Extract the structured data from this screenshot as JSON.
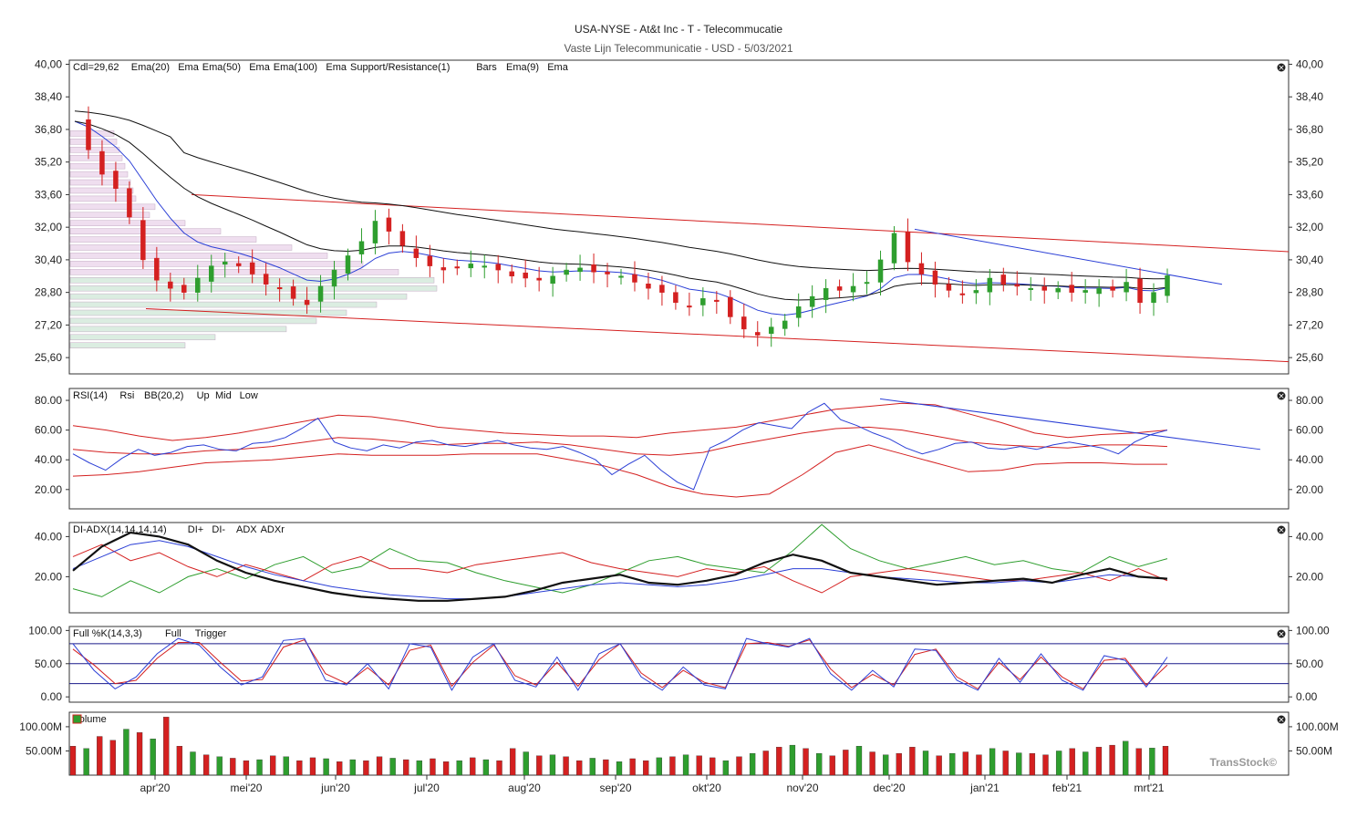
{
  "header": {
    "title": "USA-NYSE - At&t Inc - T - Telecommucatie",
    "subtitle": "Vaste Lijn Telecommunicatie - USD - 5/03/2021"
  },
  "watermark": "TransStock©",
  "colors": {
    "up": "#2e9e2e",
    "down": "#d42020",
    "ema_fast": "#2b3fd6",
    "ema_slow": "#111111",
    "sr": "#d42020",
    "trend": "#2b3fd6"
  },
  "months": [
    "apr'20",
    "mei'20",
    "jun'20",
    "jul'20",
    "aug'20",
    "sep'20",
    "okt'20",
    "nov'20",
    "dec'20",
    "jan'21",
    "feb'21",
    "mrt'21"
  ],
  "close_icon": "×",
  "chart_data": [
    {
      "id": "price",
      "type": "candlestick",
      "legend": [
        "Cdl=29,62",
        "Ema(20)",
        "Ema",
        "Ema(50)",
        "Ema",
        "Ema(100)",
        "Ema",
        "Support/Resistance(1)",
        "Bars",
        "Ema(9)",
        "Ema"
      ],
      "y_ticks": [
        "40,00",
        "38,40",
        "36,80",
        "35,20",
        "33,60",
        "32,00",
        "30,40",
        "28,80",
        "27,20",
        "25,60"
      ],
      "ylim": [
        24.8,
        40.2
      ],
      "x_months": [
        "apr'20",
        "mei'20",
        "jun'20",
        "jul'20",
        "aug'20",
        "sep'20",
        "okt'20",
        "nov'20",
        "dec'20",
        "jan'21",
        "feb'21",
        "mrt'21"
      ],
      "series_close": [
        37.2,
        35.8,
        34.6,
        33.9,
        32.5,
        30.4,
        29.4,
        29.0,
        28.8,
        29.5,
        30.1,
        30.3,
        30.1,
        29.7,
        29.2,
        29.0,
        28.5,
        28.2,
        29.1,
        29.9,
        30.6,
        31.3,
        32.3,
        31.8,
        31.1,
        30.5,
        30.1,
        29.9,
        30.0,
        30.2,
        30.1,
        29.9,
        29.6,
        29.5,
        29.4,
        29.6,
        29.9,
        30.0,
        29.8,
        29.7,
        29.6,
        29.3,
        29.0,
        28.8,
        28.3,
        28.1,
        28.5,
        28.4,
        27.6,
        27.0,
        26.7,
        27.1,
        27.4,
        28.1,
        28.6,
        29.0,
        28.9,
        29.1,
        29.3,
        30.4,
        31.7,
        30.3,
        29.7,
        29.2,
        28.9,
        28.7,
        28.9,
        29.5,
        29.2,
        29.1,
        29.0,
        28.9,
        29.0,
        28.8,
        28.9,
        29.0,
        28.9,
        29.3,
        28.3,
        28.8,
        29.62
      ],
      "support_resistance": [
        {
          "from": 33.6,
          "to": 30.8
        },
        {
          "from": 28.0,
          "to": 25.4
        }
      ],
      "trendline": {
        "from": 31.9,
        "to": 29.2
      }
    },
    {
      "id": "rsi",
      "type": "line",
      "legend": [
        "RSI(14)",
        "Rsi",
        "BB(20,2)",
        "Up",
        "Mid",
        "Low"
      ],
      "y_ticks": [
        "80.00",
        "60.00",
        "40.00",
        "20.00"
      ],
      "ylim": [
        7,
        88
      ],
      "rsi": [
        44,
        38,
        33,
        41,
        47,
        43,
        45,
        49,
        50,
        47,
        46,
        51,
        52,
        55,
        61,
        68,
        52,
        48,
        46,
        50,
        48,
        52,
        53,
        50,
        49,
        51,
        53,
        50,
        48,
        47,
        49,
        45,
        40,
        30,
        37,
        43,
        33,
        25,
        20,
        48,
        53,
        60,
        65,
        63,
        61,
        72,
        78,
        67,
        63,
        58,
        54,
        48,
        44,
        47,
        51,
        52,
        48,
        47,
        49,
        47,
        50,
        52,
        50,
        48,
        44,
        52,
        57,
        60
      ],
      "bb_up": [
        63,
        60,
        56,
        53,
        55,
        58,
        62,
        66,
        70,
        69,
        66,
        62,
        60,
        58,
        57,
        56,
        56,
        55,
        58,
        60,
        62,
        66,
        70,
        74,
        76,
        78,
        77,
        71,
        65,
        58,
        55,
        57,
        58,
        60
      ],
      "bb_mid": [
        47,
        45,
        44,
        44,
        46,
        47,
        49,
        52,
        55,
        54,
        52,
        50,
        51,
        51,
        52,
        50,
        47,
        44,
        43,
        45,
        50,
        54,
        58,
        61,
        62,
        60,
        56,
        52,
        50,
        49,
        48,
        50,
        50,
        49
      ],
      "bb_low": [
        29,
        30,
        32,
        35,
        38,
        39,
        40,
        42,
        44,
        43,
        43,
        43,
        44,
        44,
        44,
        40,
        36,
        30,
        22,
        17,
        15,
        17,
        30,
        45,
        50,
        44,
        38,
        32,
        33,
        37,
        38,
        38,
        37,
        37
      ],
      "trendline": {
        "from": 81,
        "to": 47
      }
    },
    {
      "id": "adx",
      "type": "line",
      "legend": [
        "DI-ADX(14,14,14,14)",
        "DI+",
        "DI-",
        "ADX",
        "ADXr"
      ],
      "y_ticks": [
        "40.00",
        "20.00"
      ],
      "ylim": [
        2,
        47
      ],
      "di_plus": [
        14,
        10,
        18,
        12,
        20,
        24,
        19,
        26,
        30,
        22,
        25,
        34,
        28,
        27,
        22,
        18,
        15,
        12,
        16,
        22,
        28,
        30,
        26,
        24,
        22,
        33,
        46,
        34,
        28,
        24,
        27,
        30,
        26,
        28,
        24,
        22,
        30,
        25,
        29
      ],
      "di_minus": [
        30,
        36,
        28,
        32,
        25,
        20,
        26,
        22,
        18,
        26,
        30,
        24,
        24,
        22,
        26,
        28,
        30,
        32,
        27,
        24,
        22,
        20,
        24,
        22,
        25,
        18,
        12,
        20,
        22,
        24,
        22,
        20,
        18,
        18,
        20,
        22,
        18,
        24,
        18
      ],
      "adx": [
        23,
        35,
        42,
        40,
        36,
        28,
        22,
        18,
        15,
        12,
        10,
        9,
        8,
        8,
        9,
        10,
        13,
        17,
        19,
        21,
        17,
        16,
        18,
        21,
        27,
        31,
        28,
        22,
        20,
        18,
        16,
        17,
        18,
        19,
        17,
        21,
        24,
        20,
        19
      ],
      "adxr": [
        24,
        30,
        36,
        38,
        35,
        30,
        25,
        21,
        18,
        15,
        13,
        11,
        10,
        9,
        9,
        10,
        12,
        14,
        16,
        17,
        16,
        15,
        16,
        18,
        21,
        24,
        24,
        22,
        20,
        19,
        18,
        17,
        17,
        18,
        17,
        19,
        21,
        20,
        19
      ]
    },
    {
      "id": "stoch",
      "type": "line",
      "legend": [
        "Full %K(14,3,3)",
        "Full",
        "Trigger"
      ],
      "y_ticks": [
        "100.00",
        "50.00",
        "0.00"
      ],
      "ylim": [
        -8,
        106
      ],
      "levels": [
        80,
        50,
        20
      ],
      "full": [
        80,
        40,
        12,
        30,
        65,
        88,
        78,
        45,
        18,
        30,
        85,
        88,
        25,
        18,
        50,
        12,
        80,
        75,
        10,
        60,
        80,
        25,
        15,
        60,
        10,
        65,
        80,
        30,
        10,
        45,
        18,
        12,
        88,
        80,
        75,
        88,
        35,
        10,
        40,
        15,
        72,
        70,
        25,
        10,
        58,
        22,
        65,
        25,
        10,
        62,
        55,
        15,
        60
      ],
      "trigger": [
        72,
        48,
        20,
        25,
        58,
        82,
        82,
        52,
        24,
        26,
        75,
        86,
        35,
        20,
        44,
        18,
        70,
        78,
        16,
        52,
        78,
        32,
        18,
        52,
        16,
        56,
        80,
        36,
        14,
        40,
        22,
        14,
        80,
        82,
        76,
        86,
        42,
        14,
        34,
        18,
        64,
        72,
        30,
        12,
        52,
        26,
        60,
        30,
        12,
        55,
        58,
        18,
        48
      ]
    },
    {
      "id": "volume",
      "type": "bar",
      "legend": [
        "Volume"
      ],
      "y_ticks": [
        "100.00M",
        "50.00M"
      ],
      "ylim": [
        0,
        130
      ],
      "volumes": [
        60,
        55,
        80,
        72,
        95,
        88,
        75,
        120,
        60,
        48,
        42,
        38,
        35,
        30,
        32,
        40,
        38,
        30,
        36,
        34,
        28,
        32,
        30,
        38,
        35,
        32,
        30,
        34,
        28,
        30,
        36,
        32,
        30,
        55,
        48,
        40,
        42,
        38,
        30,
        35,
        32,
        28,
        34,
        30,
        36,
        38,
        42,
        40,
        36,
        30,
        38,
        45,
        50,
        58,
        62,
        55,
        45,
        40,
        52,
        60,
        48,
        42,
        45,
        58,
        50,
        40,
        45,
        48,
        42,
        55,
        50,
        46,
        45,
        42,
        50,
        55,
        48,
        58,
        62,
        70,
        55,
        56,
        60
      ]
    }
  ]
}
